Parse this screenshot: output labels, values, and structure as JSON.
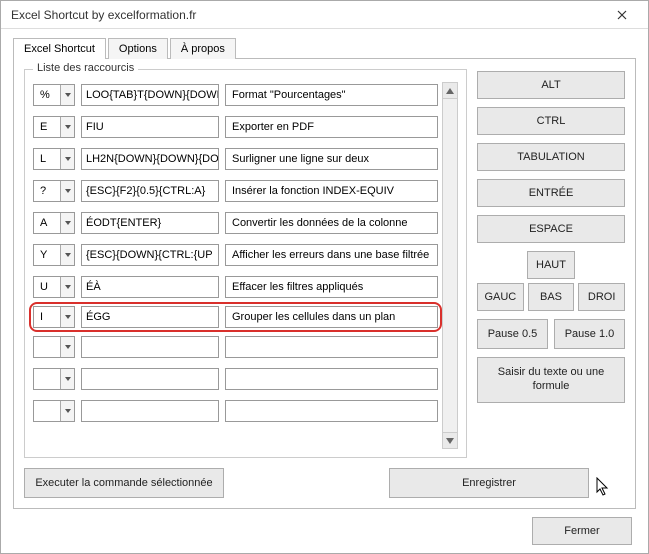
{
  "window": {
    "title": "Excel Shortcut by excelformation.fr"
  },
  "tabs": {
    "t0": "Excel Shortcut",
    "t1": "Options",
    "t2": "À propos"
  },
  "group": {
    "label": "Liste des raccourcis"
  },
  "rows": [
    {
      "key": "%",
      "seq": "LOO{TAB}T{DOWN}{DOWN",
      "desc": "Format \"Pourcentages\""
    },
    {
      "key": "E",
      "seq": "FIU",
      "desc": "Exporter en PDF"
    },
    {
      "key": "L",
      "seq": "LH2N{DOWN}{DOWN}{DO",
      "desc": "Surligner une ligne sur deux"
    },
    {
      "key": "?",
      "seq": "{ESC}{F2}{0.5}{CTRL:A}",
      "desc": "Insérer la fonction INDEX-EQUIV"
    },
    {
      "key": "A",
      "seq": "ÉODT{ENTER}",
      "desc": "Convertir les données de la colonne"
    },
    {
      "key": "Y",
      "seq": "{ESC}{DOWN}{CTRL:{UP",
      "desc": "Afficher les erreurs dans une base filtrée"
    },
    {
      "key": "U",
      "seq": "ÉÀ",
      "desc": "Effacer les filtres appliqués"
    },
    {
      "key": "I",
      "seq": "ÉGG",
      "desc": "Grouper les cellules dans un plan"
    },
    {
      "key": "",
      "seq": "",
      "desc": ""
    },
    {
      "key": "",
      "seq": "",
      "desc": ""
    },
    {
      "key": "",
      "seq": "",
      "desc": ""
    }
  ],
  "highlight_index": 7,
  "side": {
    "alt": "ALT",
    "ctrl": "CTRL",
    "tab": "TABULATION",
    "enter": "ENTRÉE",
    "space": "ESPACE",
    "up": "HAUT",
    "left": "GAUC",
    "down": "BAS",
    "right": "DROI",
    "p05": "Pause 0.5",
    "p10": "Pause 1.0",
    "text": "Saisir du texte ou une formule"
  },
  "bottom": {
    "exec": "Executer la commande sélectionnée",
    "save": "Enregistrer"
  },
  "footer": {
    "close": "Fermer"
  },
  "colors": {
    "highlight": "#d9302c",
    "border": "#adadad",
    "btn_bg": "#e9e9e9"
  }
}
